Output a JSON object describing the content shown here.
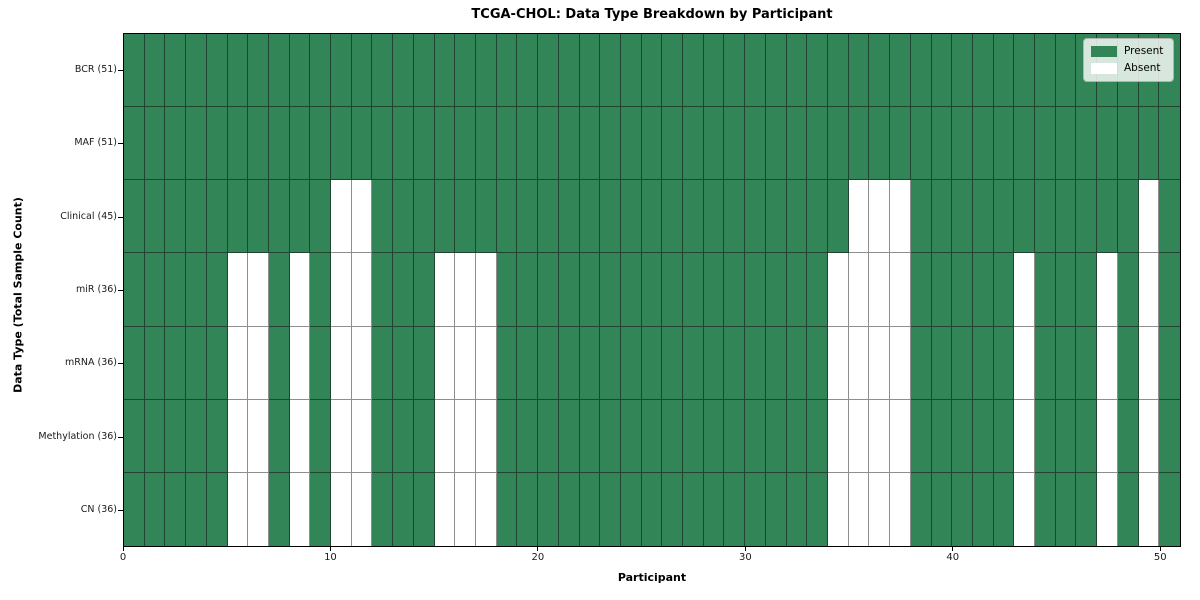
{
  "chart_data": {
    "type": "heatmap",
    "title": "TCGA-CHOL: Data Type Breakdown by Participant",
    "xlabel": "Participant",
    "ylabel": "Data Type (Total Sample Count)",
    "n_participants": 51,
    "xlim": [
      0,
      51
    ],
    "x_ticks": [
      0,
      10,
      20,
      30,
      40,
      50
    ],
    "grid": true,
    "legend_position": "upper right",
    "legend": [
      {
        "label": "Present",
        "state": "present"
      },
      {
        "label": "Absent",
        "state": "absent"
      }
    ],
    "colors": {
      "present": "#318557",
      "absent": "#ffffff",
      "grid_on_present": "#20442f",
      "grid_on_absent": "#8e8e8e",
      "frame": "#000000",
      "legend_border": "#b3b3b3"
    },
    "rows": [
      {
        "label": "BCR (51)",
        "data_type": "BCR",
        "present_count": 51,
        "absent_participants": []
      },
      {
        "label": "MAF (51)",
        "data_type": "MAF",
        "present_count": 51,
        "absent_participants": []
      },
      {
        "label": "Clinical (45)",
        "data_type": "Clinical",
        "present_count": 45,
        "absent_participants": [
          10,
          11,
          35,
          36,
          37,
          49
        ]
      },
      {
        "label": "miR (36)",
        "data_type": "miR",
        "present_count": 36,
        "absent_participants": [
          5,
          6,
          8,
          10,
          11,
          15,
          16,
          17,
          34,
          35,
          36,
          37,
          43,
          47,
          49
        ]
      },
      {
        "label": "mRNA (36)",
        "data_type": "mRNA",
        "present_count": 36,
        "absent_participants": [
          5,
          6,
          8,
          10,
          11,
          15,
          16,
          17,
          34,
          35,
          36,
          37,
          43,
          47,
          49
        ]
      },
      {
        "label": "Methylation (36)",
        "data_type": "Methylation",
        "present_count": 36,
        "absent_participants": [
          5,
          6,
          8,
          10,
          11,
          15,
          16,
          17,
          34,
          35,
          36,
          37,
          43,
          47,
          49
        ]
      },
      {
        "label": "CN (36)",
        "data_type": "CN",
        "present_count": 36,
        "absent_participants": [
          5,
          6,
          8,
          10,
          11,
          15,
          16,
          17,
          34,
          35,
          36,
          37,
          43,
          47,
          49
        ]
      }
    ]
  }
}
